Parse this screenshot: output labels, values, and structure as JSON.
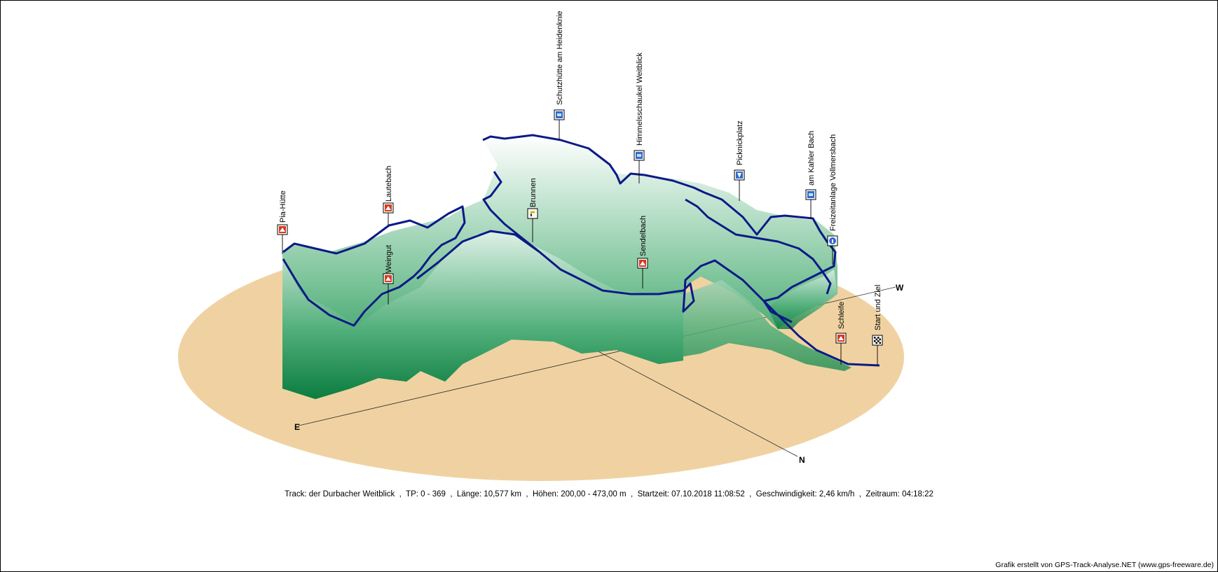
{
  "chart_data": {
    "type": "3d-elevation-track",
    "track_name": "der Durbacher Weitblick",
    "trackpoints": [
      0,
      369
    ],
    "length_km": 10.577,
    "elevation_range_m": [
      200.0,
      473.0
    ],
    "start_time": "07.10.2018 11:08:52",
    "speed_kmh": 2.46,
    "duration": "04:18:22",
    "compass": {
      "east": "E",
      "west": "W",
      "north": "N"
    },
    "waypoints": [
      {
        "name": "Pia-Hütte",
        "icon": "hut-icon"
      },
      {
        "name": "Lautebach",
        "icon": "hut-icon"
      },
      {
        "name": "Weingut",
        "icon": "hut-icon"
      },
      {
        "name": "Brunnen",
        "icon": "fountain-icon"
      },
      {
        "name": "Schutzhütte am Heidenknie",
        "icon": "shelter-icon"
      },
      {
        "name": "Himmelsschaukel Weitblick",
        "icon": "shelter-icon"
      },
      {
        "name": "Sendelbach",
        "icon": "hut-icon"
      },
      {
        "name": "Picknickplatz",
        "icon": "picnic-icon"
      },
      {
        "name": "am Kahler Bach",
        "icon": "shelter-icon"
      },
      {
        "name": "Freizeitanlage Vollmersbach",
        "icon": "info-icon"
      },
      {
        "name": "Schleife",
        "icon": "hut-icon"
      },
      {
        "name": "Start und Ziel",
        "icon": "finish-flag-icon"
      }
    ],
    "colors": {
      "ground": "#f0d2a2",
      "track": "#0b1a86",
      "wall_top": "#ffffff",
      "wall_bottom": "#0e8a48"
    }
  },
  "info_line": "Track: der Durbacher Weitblick  ,  TP: 0 - 369  ,  Länge: 10,577 km  ,  Höhen: 200,00 - 473,00 m  ,  Startzeit: 07.10.2018 11:08:52  ,  Geschwindigkeit: 2,46 km/h  ,  Zeitraum: 04:18:22",
  "credit": "Grafik erstellt von GPS-Track-Analyse.NET (www.gps-freeware.de)"
}
